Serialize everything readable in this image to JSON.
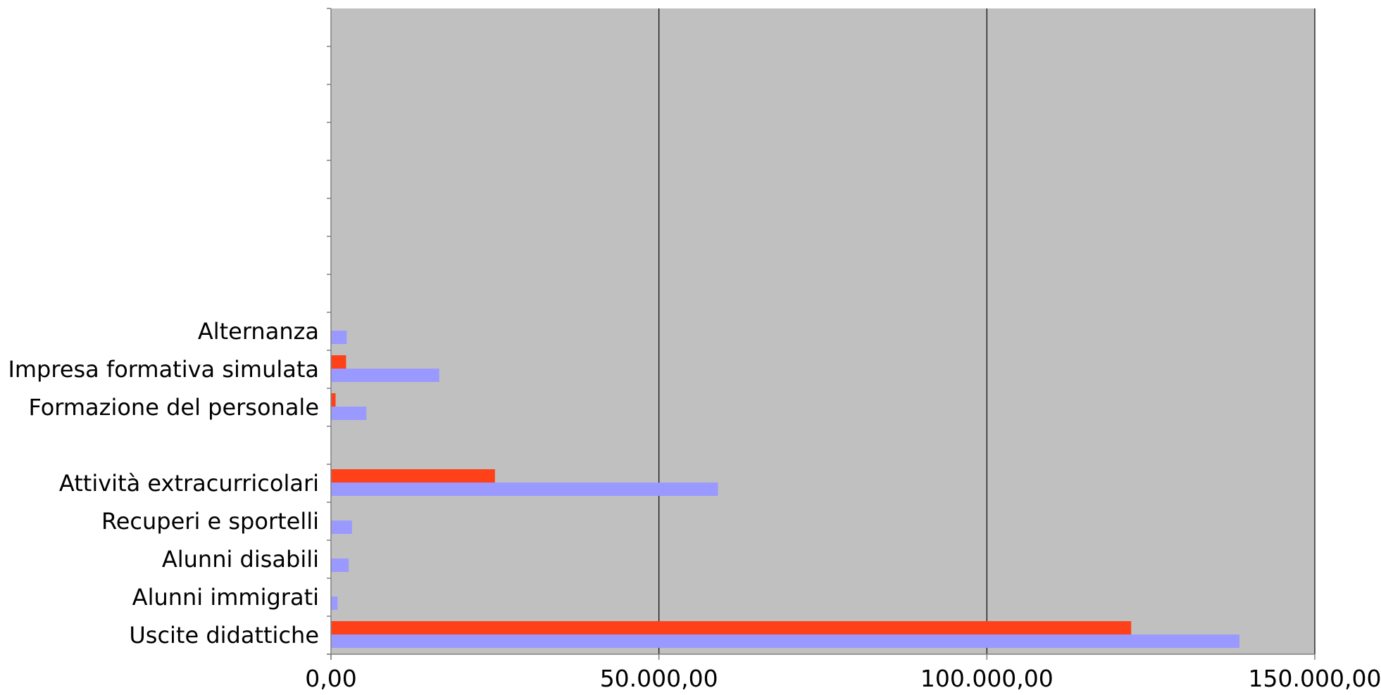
{
  "chart_data": {
    "type": "bar",
    "orientation": "horizontal",
    "categories": [
      "Uscite didattiche",
      "Alunni immigrati",
      "Alunni disabili",
      "Recuperi e sportelli",
      "Attività extracurricolari",
      "",
      "Formazione del personale",
      "Impresa formativa simulata",
      "Alternanza",
      "",
      "",
      "",
      "",
      "",
      "",
      "",
      ""
    ],
    "series": [
      {
        "color": "#ff4119",
        "values": [
          122000,
          0,
          0,
          0,
          25000,
          0,
          700,
          2300,
          0,
          0,
          0,
          0,
          0,
          0,
          0,
          0,
          0
        ]
      },
      {
        "color": "#9999ff",
        "values": [
          138500,
          1000,
          2700,
          3200,
          59000,
          0,
          5400,
          16500,
          2400,
          0,
          0,
          0,
          0,
          0,
          0,
          0,
          0
        ]
      }
    ],
    "xlim": [
      0,
      150000
    ],
    "xticks": [
      0,
      50000,
      100000,
      150000
    ],
    "xtick_labels": [
      "0,00",
      "50.000,00",
      "100.000,00",
      "150.000,00"
    ],
    "grid": true,
    "plot_background": "#c0c0c0",
    "title": "",
    "xlabel": "",
    "ylabel": ""
  }
}
